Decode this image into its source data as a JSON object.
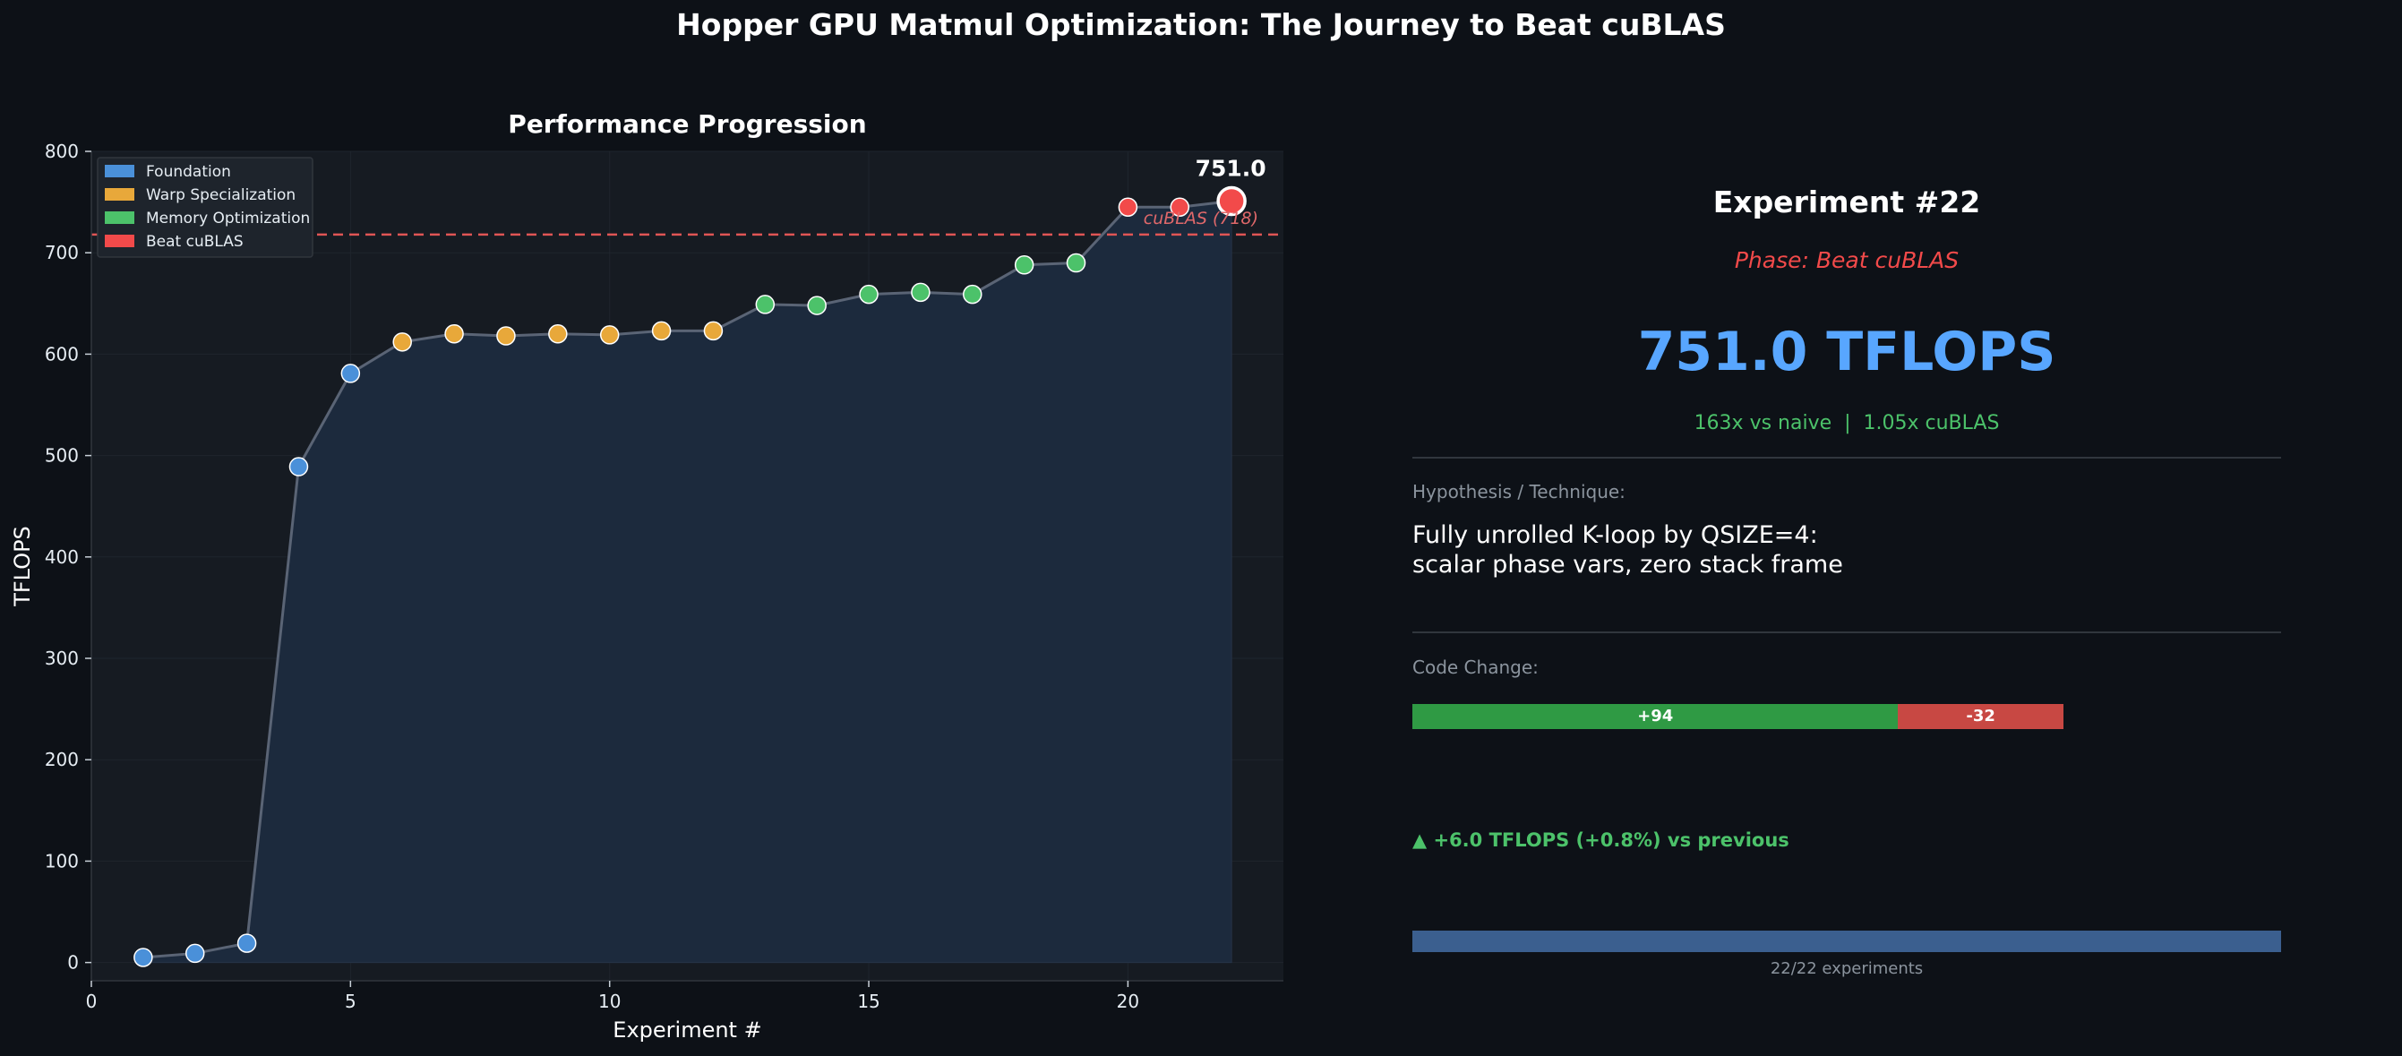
{
  "figure_title": "Hopper GPU Matmul Optimization: The Journey to Beat cuBLAS",
  "colors": {
    "background": "#0d1117",
    "plot_background": "#161b22",
    "area_fill": "#1c2a3d",
    "line": "#5a6475",
    "cublas_line": "#e05555",
    "foundation": "#4a90d9",
    "warp_specialization": "#e8a83a",
    "memory_optimization": "#4cc26a",
    "beat_cublas": "#f24a4a",
    "tflops_blue": "#58a6ff",
    "speedup_green": "#4cc26a",
    "phase_red": "#f24a4a",
    "add_green": "#2f9a44",
    "del_red": "#c84843"
  },
  "chart_data": {
    "type": "line",
    "title": "Performance Progression",
    "xlabel": "Experiment #",
    "ylabel": "TFLOPS",
    "xlim": [
      0,
      23
    ],
    "ylim": [
      -18,
      800
    ],
    "xticks": [
      0,
      5,
      10,
      15,
      20
    ],
    "yticks": [
      0,
      100,
      200,
      300,
      400,
      500,
      600,
      700,
      800
    ],
    "grid": true,
    "legend_position": "top-left",
    "legend": [
      {
        "label": "Foundation",
        "phase": "foundation"
      },
      {
        "label": "Warp Specialization",
        "phase": "warp_specialization"
      },
      {
        "label": "Memory Optimization",
        "phase": "memory_optimization"
      },
      {
        "label": "Beat cuBLAS",
        "phase": "beat_cublas"
      }
    ],
    "reference_line": {
      "value": 718,
      "label": "cuBLAS (718)"
    },
    "highlight": {
      "x": 22,
      "y": 751.0,
      "label": "751.0"
    },
    "points": [
      {
        "x": 1,
        "y": 5,
        "phase": "foundation"
      },
      {
        "x": 2,
        "y": 9,
        "phase": "foundation"
      },
      {
        "x": 3,
        "y": 19,
        "phase": "foundation"
      },
      {
        "x": 4,
        "y": 489,
        "phase": "foundation"
      },
      {
        "x": 5,
        "y": 581,
        "phase": "foundation"
      },
      {
        "x": 6,
        "y": 612,
        "phase": "warp_specialization"
      },
      {
        "x": 7,
        "y": 620,
        "phase": "warp_specialization"
      },
      {
        "x": 8,
        "y": 618,
        "phase": "warp_specialization"
      },
      {
        "x": 9,
        "y": 620,
        "phase": "warp_specialization"
      },
      {
        "x": 10,
        "y": 619,
        "phase": "warp_specialization"
      },
      {
        "x": 11,
        "y": 623,
        "phase": "warp_specialization"
      },
      {
        "x": 12,
        "y": 623,
        "phase": "warp_specialization"
      },
      {
        "x": 13,
        "y": 649,
        "phase": "memory_optimization"
      },
      {
        "x": 14,
        "y": 648,
        "phase": "memory_optimization"
      },
      {
        "x": 15,
        "y": 659,
        "phase": "memory_optimization"
      },
      {
        "x": 16,
        "y": 661,
        "phase": "memory_optimization"
      },
      {
        "x": 17,
        "y": 659,
        "phase": "memory_optimization"
      },
      {
        "x": 18,
        "y": 688,
        "phase": "memory_optimization"
      },
      {
        "x": 19,
        "y": 690,
        "phase": "memory_optimization"
      },
      {
        "x": 20,
        "y": 745,
        "phase": "beat_cublas"
      },
      {
        "x": 21,
        "y": 745,
        "phase": "beat_cublas"
      },
      {
        "x": 22,
        "y": 751,
        "phase": "beat_cublas"
      }
    ]
  },
  "panel": {
    "experiment_title": "Experiment #22",
    "phase_text": "Phase: Beat cuBLAS",
    "tflops_text": "751.0 TFLOPS",
    "speedup_text": "163x vs naive  |  1.05x cuBLAS",
    "hypothesis_label": "Hypothesis / Technique:",
    "hypothesis_text": "Fully unrolled K-loop by QSIZE=4:\nscalar phase vars, zero stack frame",
    "code_change_label": "Code Change:",
    "lines_added": 94,
    "lines_removed": 32,
    "lines_added_label": "+94",
    "lines_removed_label": "-32",
    "delta_text": "▲ +6.0 TFLOPS (+0.8%) vs previous",
    "progress_current": 22,
    "progress_total": 22,
    "progress_text": "22/22 experiments"
  }
}
